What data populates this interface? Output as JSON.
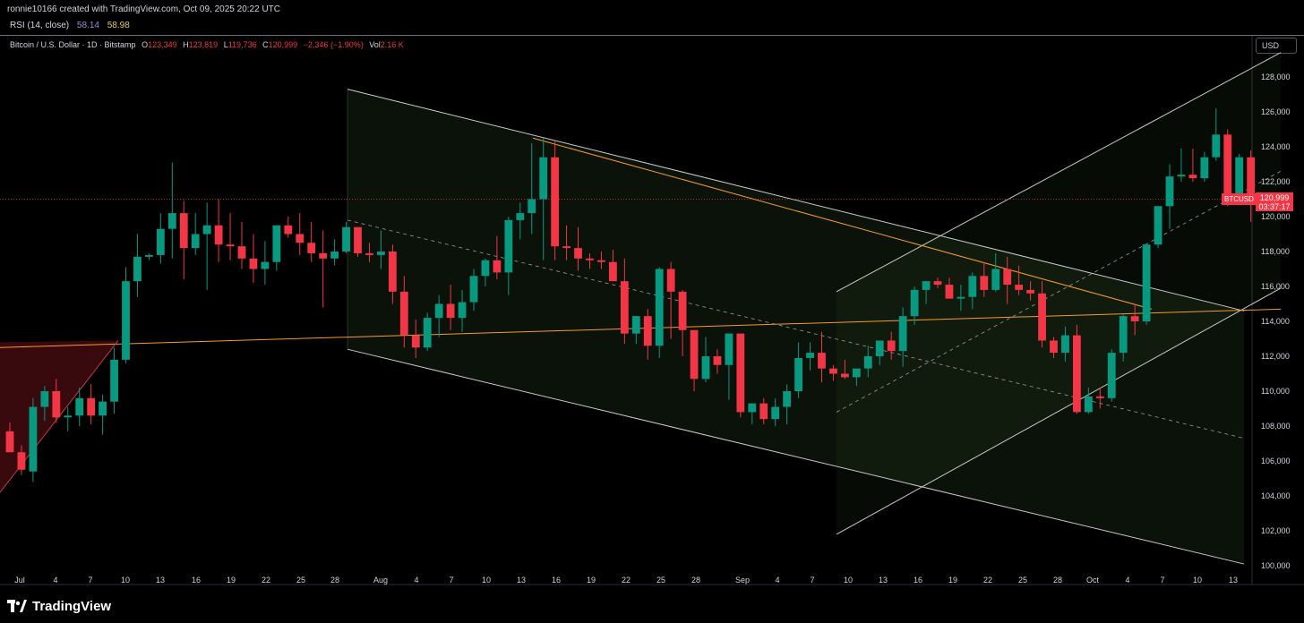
{
  "header": {
    "credit": "ronnie10166 created with TradingView.com, Oct 09, 2025 20:22 UTC"
  },
  "rsi": {
    "label": "RSI (14, close)",
    "value1": "58.14",
    "value2": "58.98"
  },
  "legend": {
    "symbol": "Bitcoin / U.S. Dollar · 1D · Bitstamp",
    "open_label": "O",
    "open": "123,349",
    "high_label": "H",
    "high": "123,819",
    "low_label": "L",
    "low": "119,736",
    "close_label": "C",
    "close": "120,999",
    "change": "−2,346 (−1.90%)",
    "vol_label": "Vol",
    "vol": "2.16 K"
  },
  "currency": "USD",
  "ticker_tag": "BTCUSD",
  "price_tag": {
    "price": "120,999",
    "countdown": "03:37:17"
  },
  "brand": "TradingView",
  "colors": {
    "up": "#089981",
    "down": "#f23645",
    "background": "#000000",
    "channel_line": "#c8c8c8",
    "trend_orange": "#f59b23"
  },
  "chart_data": {
    "type": "candlestick",
    "ylim": [
      99000,
      130500
    ],
    "y_ticks": [
      "100,000",
      "102,000",
      "104,000",
      "106,000",
      "108,000",
      "110,000",
      "112,000",
      "114,000",
      "116,000",
      "118,000",
      "120,000",
      "122,000",
      "124,000",
      "126,000",
      "128,000"
    ],
    "x_ticks": [
      "Jul",
      "4",
      "7",
      "10",
      "13",
      "16",
      "19",
      "22",
      "25",
      "28",
      "Aug",
      "4",
      "7",
      "10",
      "13",
      "16",
      "19",
      "22",
      "25",
      "28",
      "Sep",
      "4",
      "7",
      "10",
      "13",
      "16",
      "19",
      "22",
      "25",
      "28",
      "Oct",
      "4",
      "7",
      "10",
      "13"
    ],
    "candles": [
      [
        107700,
        108200,
        106800,
        106500
      ],
      [
        106500,
        106900,
        105200,
        105500
      ],
      [
        105400,
        109600,
        104800,
        109100
      ],
      [
        109100,
        110300,
        108300,
        110000
      ],
      [
        110000,
        110700,
        108200,
        108500
      ],
      [
        108500,
        109100,
        107700,
        108600
      ],
      [
        108600,
        110200,
        108000,
        109600
      ],
      [
        109600,
        110400,
        108100,
        108600
      ],
      [
        108600,
        109800,
        107500,
        109400
      ],
      [
        109400,
        112500,
        108700,
        111800
      ],
      [
        111800,
        117100,
        111600,
        116300
      ],
      [
        116300,
        119000,
        115400,
        117700
      ],
      [
        117700,
        117900,
        117500,
        117800
      ],
      [
        117800,
        120200,
        117300,
        119300
      ],
      [
        119300,
        123100,
        117600,
        120200
      ],
      [
        120200,
        120900,
        116400,
        118200
      ],
      [
        118200,
        120200,
        117800,
        119000
      ],
      [
        119000,
        120800,
        115800,
        119500
      ],
      [
        119500,
        121000,
        117400,
        118400
      ],
      [
        118400,
        120200,
        117500,
        118300
      ],
      [
        118300,
        119700,
        117000,
        117600
      ],
      [
        117600,
        119000,
        116200,
        117000
      ],
      [
        117000,
        118600,
        116100,
        117400
      ],
      [
        117400,
        119200,
        116900,
        119500
      ],
      [
        119500,
        120000,
        118800,
        119000
      ],
      [
        119000,
        120200,
        117800,
        118500
      ],
      [
        118500,
        119700,
        117400,
        117900
      ],
      [
        117900,
        119200,
        114800,
        117600
      ],
      [
        117600,
        118700,
        117200,
        118000
      ],
      [
        118000,
        119700,
        117900,
        119400
      ],
      [
        119400,
        119400,
        117700,
        117900
      ],
      [
        117900,
        118500,
        117400,
        117800
      ],
      [
        117800,
        119200,
        117000,
        118000
      ],
      [
        118000,
        118400,
        115000,
        115700
      ],
      [
        115700,
        116600,
        112500,
        113200
      ],
      [
        113200,
        114100,
        111900,
        112500
      ],
      [
        112500,
        114500,
        112300,
        114200
      ],
      [
        114200,
        115500,
        113100,
        115000
      ],
      [
        115000,
        116100,
        113500,
        114200
      ],
      [
        114200,
        115800,
        113400,
        115100
      ],
      [
        115100,
        117000,
        114600,
        116600
      ],
      [
        116600,
        117600,
        116000,
        117500
      ],
      [
        117500,
        118900,
        116400,
        116800
      ],
      [
        116800,
        120000,
        115500,
        119800
      ],
      [
        119800,
        120800,
        118700,
        120200
      ],
      [
        120200,
        124200,
        119000,
        121000
      ],
      [
        121000,
        124500,
        117500,
        123400
      ],
      [
        123400,
        124400,
        117500,
        118300
      ],
      [
        118300,
        119500,
        117500,
        118200
      ],
      [
        118200,
        119400,
        116900,
        117600
      ],
      [
        117600,
        117900,
        117000,
        117500
      ],
      [
        117500,
        118000,
        117000,
        117400
      ],
      [
        117400,
        118100,
        116300,
        116300
      ],
      [
        116300,
        117600,
        112700,
        113300
      ],
      [
        113300,
        114300,
        112700,
        114300
      ],
      [
        114300,
        114700,
        111800,
        112600
      ],
      [
        112600,
        117100,
        111900,
        117000
      ],
      [
        117000,
        117400,
        113000,
        115700
      ],
      [
        115700,
        115800,
        112000,
        113500
      ],
      [
        113500,
        113500,
        110000,
        110700
      ],
      [
        110700,
        113100,
        110500,
        112000
      ],
      [
        112000,
        112400,
        111000,
        111500
      ],
      [
        111500,
        113300,
        109500,
        113300
      ],
      [
        113300,
        113300,
        108500,
        108800
      ],
      [
        108800,
        109300,
        108100,
        109300
      ],
      [
        109300,
        109600,
        108100,
        108400
      ],
      [
        108400,
        109600,
        108000,
        109100
      ],
      [
        109100,
        110400,
        108100,
        110000
      ],
      [
        110000,
        112800,
        109600,
        111900
      ],
      [
        111900,
        112800,
        111200,
        112200
      ],
      [
        112200,
        113400,
        110500,
        111300
      ],
      [
        111300,
        111500,
        110600,
        111000
      ],
      [
        111000,
        111800,
        110700,
        110800
      ],
      [
        110800,
        111300,
        110300,
        111300
      ],
      [
        111300,
        112600,
        110800,
        112000
      ],
      [
        112000,
        112800,
        111500,
        112900
      ],
      [
        112900,
        113400,
        111800,
        112300
      ],
      [
        112300,
        114800,
        111400,
        114300
      ],
      [
        114300,
        116000,
        113800,
        115800
      ],
      [
        115800,
        116300,
        115000,
        116300
      ],
      [
        116300,
        116500,
        115900,
        116100
      ],
      [
        116100,
        116500,
        115300,
        115300
      ],
      [
        115300,
        116100,
        114600,
        115400
      ],
      [
        115400,
        116800,
        114700,
        116600
      ],
      [
        116600,
        117400,
        115400,
        115800
      ],
      [
        115800,
        117900,
        115700,
        117000
      ],
      [
        117000,
        117700,
        115000,
        116100
      ],
      [
        116100,
        117200,
        115500,
        115800
      ],
      [
        115800,
        116300,
        115200,
        115600
      ],
      [
        115600,
        116300,
        112500,
        112900
      ],
      [
        112900,
        113100,
        111900,
        112200
      ],
      [
        112200,
        113700,
        111700,
        113200
      ],
      [
        113200,
        113800,
        108700,
        108800
      ],
      [
        108800,
        110200,
        108700,
        109700
      ],
      [
        109700,
        110200,
        109000,
        109600
      ],
      [
        109600,
        112400,
        109400,
        112200
      ],
      [
        112200,
        114400,
        111700,
        114300
      ],
      [
        114300,
        115000,
        113200,
        114000
      ],
      [
        114000,
        118300,
        113800,
        118400
      ],
      [
        118400,
        120400,
        118200,
        120600
      ],
      [
        120600,
        123000,
        119300,
        122300
      ],
      [
        122300,
        123900,
        122000,
        122400
      ],
      [
        122400,
        123900,
        122000,
        122200
      ],
      [
        122200,
        123700,
        122000,
        123400
      ],
      [
        123400,
        126200,
        123200,
        124700
      ],
      [
        124700,
        125000,
        120600,
        121300
      ],
      [
        121300,
        123600,
        120900,
        123400
      ],
      [
        123400,
        123800,
        119700,
        120999
      ]
    ],
    "drawings": {
      "descending_channel": {
        "upper": [
          [
            28.5,
            127300
          ],
          [
            1389,
            114600
          ]
        ],
        "lower": [
          [
            28.5,
            112400
          ],
          [
            1389,
            100100
          ]
        ]
      },
      "ascending_channel": {
        "upper": [
          [
            934,
            115700
          ],
          [
            1430,
            129400
          ]
        ],
        "lower": [
          [
            934,
            101800
          ],
          [
            1430,
            115900
          ]
        ]
      },
      "horizontal_orange": [
        [
          0,
          112500
        ],
        [
          1430,
          114700
        ]
      ],
      "diag_orange": [
        [
          595,
          124500
        ],
        [
          1286,
          114700
        ]
      ]
    }
  }
}
